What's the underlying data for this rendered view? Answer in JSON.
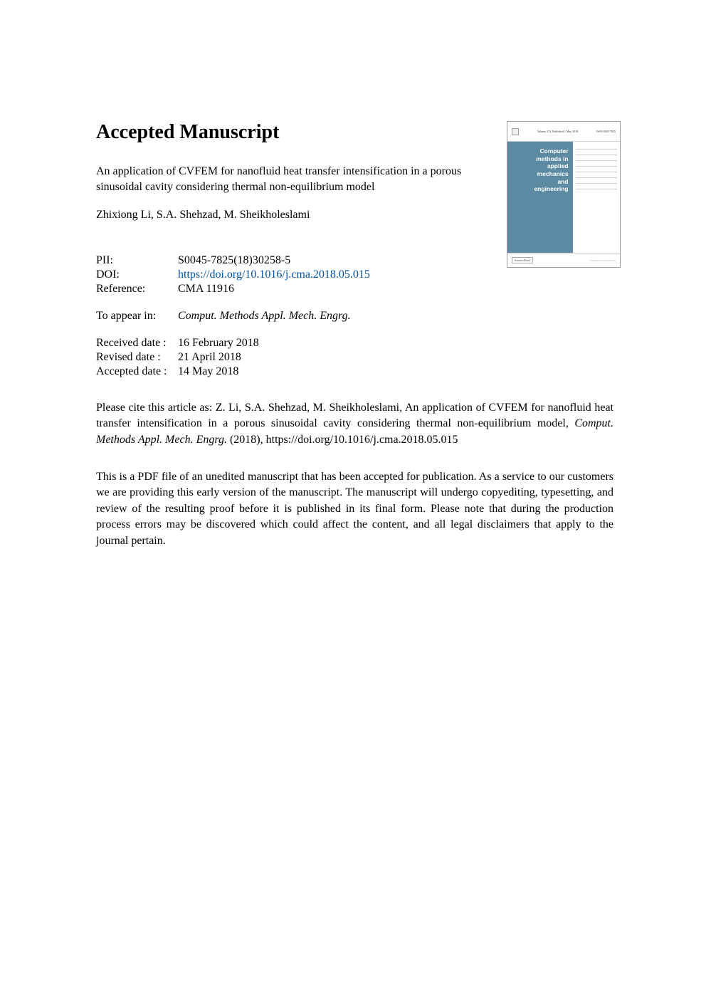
{
  "heading": "Accepted Manuscript",
  "article_title": "An application of CVFEM for nanofluid heat transfer intensification in a porous sinusoidal cavity considering thermal non-equilibrium model",
  "authors": "Zhixiong Li, S.A. Shehzad, M. Sheikholeslami",
  "meta": {
    "pii_label": "PII:",
    "pii_value": "S0045-7825(18)30258-5",
    "doi_label": "DOI:",
    "doi_value": "https://doi.org/10.1016/j.cma.2018.05.015",
    "reference_label": "Reference:",
    "reference_value": "CMA 11916"
  },
  "appear": {
    "label": "To appear in:",
    "value": "Comput. Methods Appl. Mech. Engrg."
  },
  "dates": {
    "received_label": "Received date :",
    "received_value": "16 February 2018",
    "revised_label": "Revised date :",
    "revised_value": "21 April 2018",
    "accepted_label": "Accepted date :",
    "accepted_value": "14 May 2018"
  },
  "citation_prefix": "Please cite this article as: Z. Li, S.A. Shehzad, M. Sheikholeslami, An application of CVFEM for nanofluid heat transfer intensification in a porous sinusoidal cavity considering thermal non-equilibrium model, ",
  "citation_journal_italic": "Comput. Methods Appl. Mech. Engrg.",
  "citation_suffix": " (2018), https://doi.org/10.1016/j.cma.2018.05.015",
  "disclaimer": "This is a PDF file of an unedited manuscript that has been accepted for publication. As a service to our customers we are providing this early version of the manuscript. The manuscript will undergo copyediting, typesetting, and review of the resulting proof before it is published in its final form. Please note that during the production process errors may be discovered which could affect the content, and all legal disclaimers that apply to the journal pertain.",
  "thumbnail": {
    "header_center": "Volume 333, Published 1 May 2018",
    "header_right": "ISSN 0045-7825",
    "journal_name_lines": [
      "Computer",
      "methods in",
      "applied",
      "mechanics",
      "and",
      "engineering"
    ],
    "footer_left": "ScienceDirect",
    "footer_right": "www.elsevier.com/locate/cma",
    "left_bg": "#5d8aa3",
    "left_text_color": "#ffffff"
  }
}
